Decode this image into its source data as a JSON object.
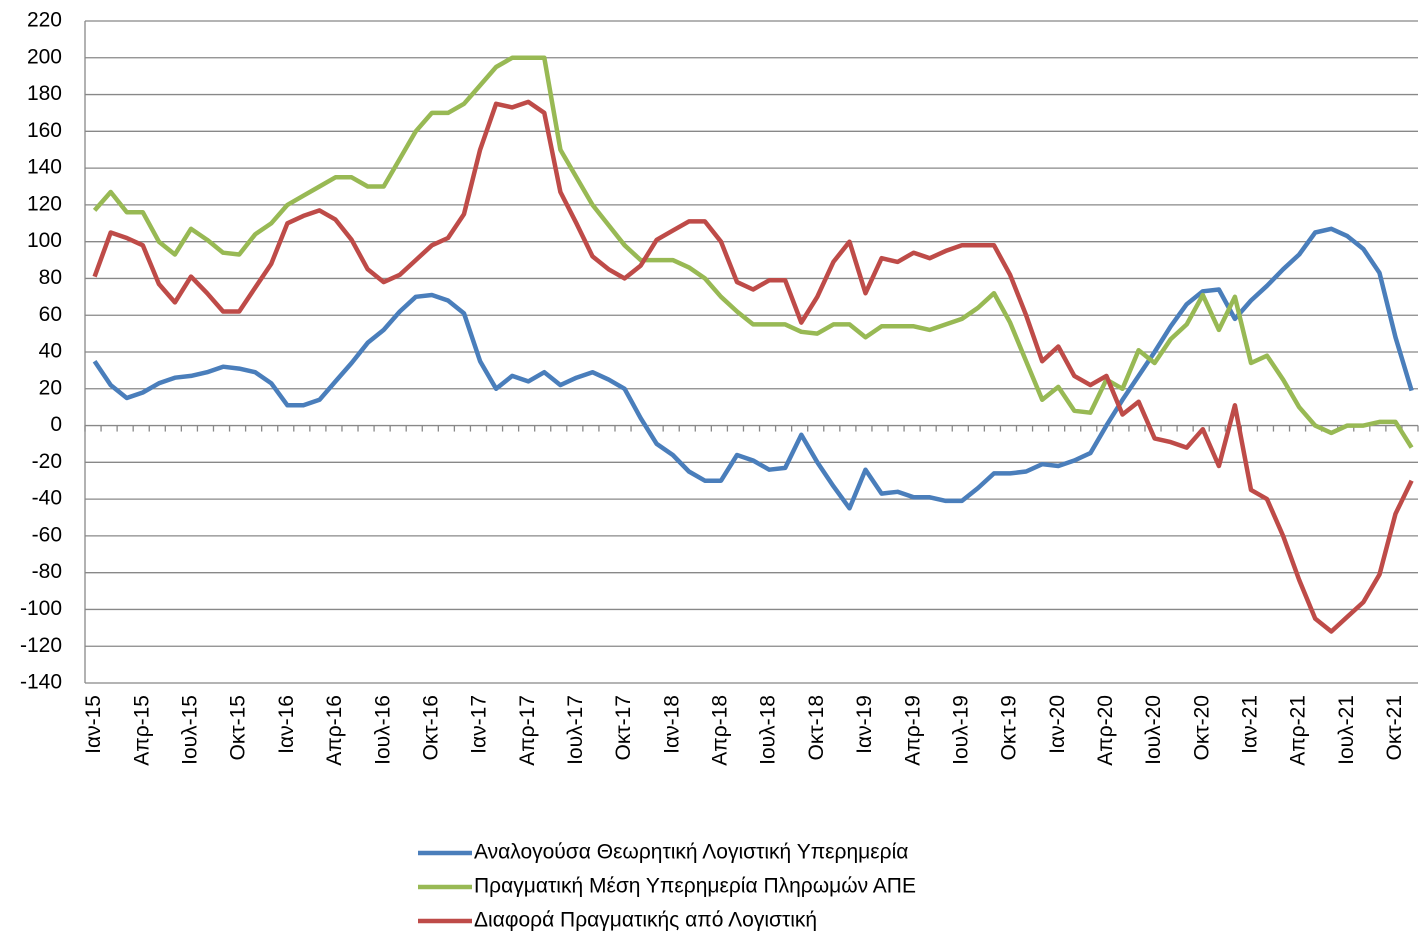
{
  "chart_data": {
    "type": "line",
    "categories": [
      "Ιαν-15",
      null,
      null,
      "Απρ-15",
      null,
      null,
      "Ιουλ-15",
      null,
      null,
      "Οκτ-15",
      null,
      null,
      "Ιαν-16",
      null,
      null,
      "Απρ-16",
      null,
      null,
      "Ιουλ-16",
      null,
      null,
      "Οκτ-16",
      null,
      null,
      "Ιαν-17",
      null,
      null,
      "Απρ-17",
      null,
      null,
      "Ιουλ-17",
      null,
      null,
      "Οκτ-17",
      null,
      null,
      "Ιαν-18",
      null,
      null,
      "Απρ-18",
      null,
      null,
      "Ιουλ-18",
      null,
      null,
      "Οκτ-18",
      null,
      null,
      "Ιαν-19",
      null,
      null,
      "Απρ-19",
      null,
      null,
      "Ιουλ-19",
      null,
      null,
      "Οκτ-19",
      null,
      null,
      "Ιαν-20",
      null,
      null,
      "Απρ-20",
      null,
      null,
      "Ιουλ-20",
      null,
      null,
      "Οκτ-20",
      null,
      null,
      "Ιαν-21",
      null,
      null,
      "Απρ-21",
      null,
      null,
      "Ιουλ-21",
      null,
      null,
      "Οκτ-21",
      null
    ],
    "series": [
      {
        "name": "Αναλογούσα Θεωρητική Λογιστική Υπερημερία",
        "color": "#4a7ebb",
        "values": [
          35,
          22,
          15,
          18,
          23,
          26,
          27,
          29,
          32,
          31,
          29,
          23,
          11,
          11,
          14,
          24,
          34,
          45,
          52,
          62,
          70,
          71,
          68,
          61,
          35,
          20,
          27,
          24,
          29,
          22,
          26,
          29,
          25,
          20,
          4,
          -10,
          -16,
          -25,
          -30,
          -30,
          -16,
          -19,
          -24,
          -23,
          -5,
          -20,
          -33,
          -45,
          -24,
          -37,
          -36,
          -39,
          -39,
          -41,
          -41,
          -34,
          -26,
          -26,
          -25,
          -21,
          -22,
          -19,
          -15,
          0,
          14,
          27,
          40,
          54,
          66,
          73,
          74,
          58,
          68,
          76,
          85,
          93,
          105,
          107,
          103,
          96,
          83,
          48,
          19
        ]
      },
      {
        "name": "Πραγματική Μέση Υπερημερία Πληρωμών ΑΠΕ",
        "color": "#98b954",
        "values": [
          117,
          127,
          116,
          116,
          100,
          93,
          107,
          101,
          94,
          93,
          104,
          110,
          120,
          125,
          130,
          135,
          135,
          130,
          130,
          145,
          160,
          170,
          170,
          175,
          185,
          195,
          200,
          200,
          200,
          150,
          135,
          120,
          109,
          98,
          90,
          90,
          90,
          86,
          80,
          70,
          62,
          55,
          55,
          55,
          51,
          50,
          55,
          55,
          48,
          54,
          54,
          54,
          52,
          55,
          58,
          64,
          72,
          56,
          35,
          14,
          21,
          8,
          7,
          25,
          20,
          41,
          34,
          47,
          55,
          71,
          52,
          70,
          34,
          38,
          25,
          10,
          0,
          -4,
          0,
          0,
          2,
          2,
          -12
        ]
      },
      {
        "name": "Διαφορά Πραγματικής από Λογιστική",
        "color": "#be4b48",
        "values": [
          81,
          105,
          102,
          98,
          77,
          67,
          81,
          72,
          62,
          62,
          75,
          88,
          110,
          114,
          117,
          112,
          101,
          85,
          78,
          82,
          90,
          98,
          102,
          115,
          150,
          175,
          173,
          176,
          170,
          127,
          110,
          92,
          85,
          80,
          87,
          101,
          106,
          111,
          111,
          100,
          78,
          74,
          79,
          79,
          56,
          70,
          89,
          100,
          72,
          91,
          89,
          94,
          91,
          95,
          98,
          98,
          98,
          82,
          60,
          35,
          43,
          27,
          22,
          27,
          6,
          13,
          -7,
          -9,
          -12,
          -2,
          -22,
          11,
          -35,
          -40,
          -60,
          -84,
          -105,
          -112,
          -104,
          -96,
          -81,
          -48,
          -30
        ]
      }
    ],
    "ylim": [
      -140,
      220
    ],
    "yticks": [
      -140,
      -120,
      -100,
      -80,
      -60,
      -40,
      -20,
      0,
      20,
      40,
      60,
      80,
      100,
      120,
      140,
      160,
      180,
      200,
      220
    ],
    "grid": true
  }
}
